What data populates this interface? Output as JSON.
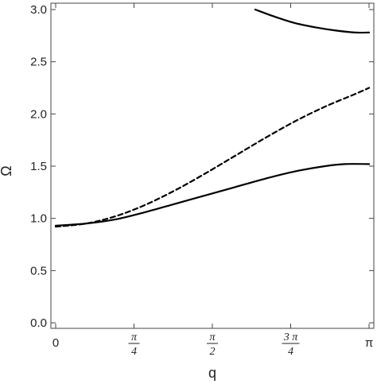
{
  "chart_data": {
    "type": "line",
    "xlabel": "q",
    "ylabel": "Ω",
    "xlim": [
      0,
      3.14159
    ],
    "ylim": [
      0,
      3.0
    ],
    "x_ticks": [
      {
        "value": 0,
        "kind": "plain",
        "text": "0"
      },
      {
        "value": 0.7854,
        "kind": "frac",
        "num": "π",
        "den": "4"
      },
      {
        "value": 1.5708,
        "kind": "frac",
        "num": "π",
        "den": "2"
      },
      {
        "value": 2.3562,
        "kind": "frac",
        "num": "3 π",
        "den": "4"
      },
      {
        "value": 3.14159,
        "kind": "plain",
        "text": "π"
      }
    ],
    "y_ticks": [
      "0.0",
      "0.5",
      "1.0",
      "1.5",
      "2.0",
      "2.5",
      "3.0"
    ],
    "grid": false,
    "series": [
      {
        "style": "solid",
        "x": [
          0,
          0.3,
          0.6,
          0.9,
          1.2,
          1.5,
          1.8,
          2.1,
          2.4,
          2.7,
          2.9,
          3.14159
        ],
        "y": [
          0.93,
          0.95,
          0.99,
          1.06,
          1.14,
          1.22,
          1.3,
          1.38,
          1.45,
          1.5,
          1.52,
          1.52
        ]
      },
      {
        "style": "dashed",
        "x": [
          0,
          0.3,
          0.6,
          0.9,
          1.2,
          1.5,
          1.8,
          2.1,
          2.4,
          2.7,
          3.0,
          3.14159
        ],
        "y": [
          0.92,
          0.95,
          1.02,
          1.13,
          1.27,
          1.43,
          1.6,
          1.77,
          1.93,
          2.07,
          2.19,
          2.25
        ]
      },
      {
        "style": "solid",
        "x": [
          2.0,
          2.2,
          2.4,
          2.6,
          2.8,
          3.0,
          3.14159
        ],
        "y": [
          3.0,
          2.93,
          2.87,
          2.83,
          2.8,
          2.78,
          2.78
        ]
      }
    ]
  }
}
